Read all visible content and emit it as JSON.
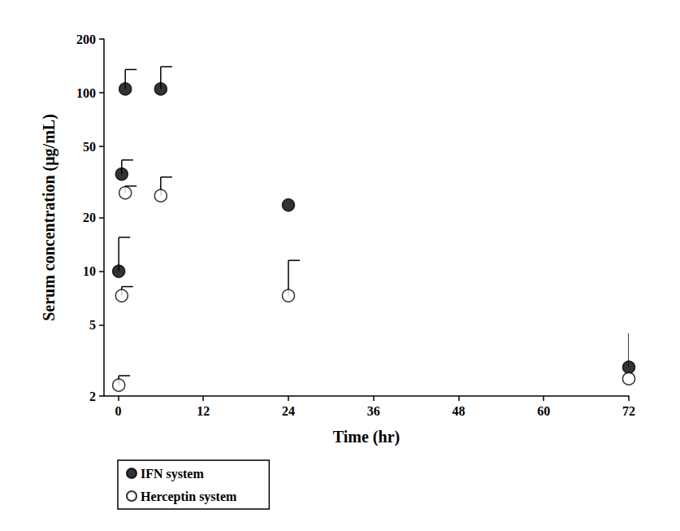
{
  "chart_data": {
    "type": "scatter",
    "x_label": "Time (hr)",
    "y_label": "Serum concentration (μg/mL)",
    "log": "y",
    "xlim": [
      -2,
      72
    ],
    "xticks": [
      0,
      12,
      24,
      36,
      48,
      60,
      72
    ],
    "ylim": [
      2,
      200
    ],
    "yticks": [
      2,
      5,
      10,
      20,
      50,
      100,
      200
    ],
    "grid": false,
    "legend": "bottom-left",
    "series": [
      {
        "name": "IFN system",
        "color": "#000000",
        "marker": "filled",
        "x": [
          0.083,
          0.5,
          1,
          6,
          24,
          72
        ],
        "values": [
          10,
          35,
          105,
          105,
          23.5,
          2.9
        ],
        "errors_plus": [
          5.5,
          7,
          30,
          35,
          null,
          1.6
        ]
      },
      {
        "name": "Herceptin system",
        "color": "#000000",
        "marker": "open",
        "x": [
          0.083,
          0.5,
          1,
          6,
          24,
          72
        ],
        "values": [
          2.3,
          7.3,
          27.5,
          26.5,
          7.3,
          2.5
        ],
        "errors_plus": [
          0.3,
          0.9,
          2.5,
          7.2,
          4.2,
          null
        ]
      }
    ]
  }
}
